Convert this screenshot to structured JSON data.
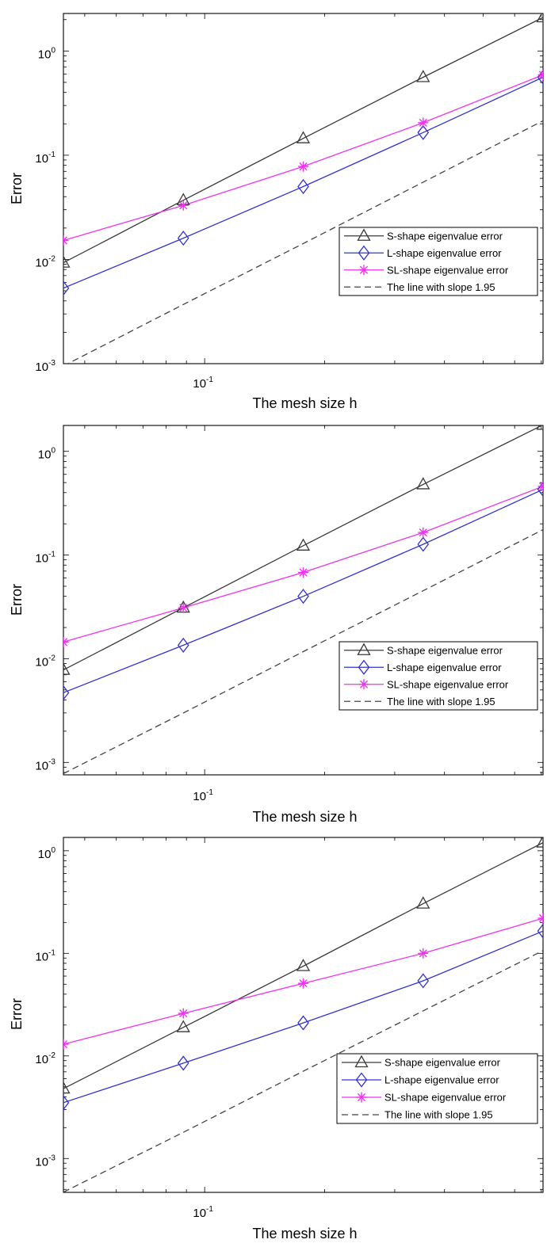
{
  "chart_data": [
    {
      "type": "line",
      "xlabel": "The mesh size h",
      "ylabel": "Error",
      "x_scale": "log",
      "y_scale": "log",
      "x": [
        0.0442,
        0.0884,
        0.1768,
        0.3536,
        0.7071
      ],
      "x_ticks": [
        {
          "value": 0.1,
          "label": "10",
          "sup": "-1"
        }
      ],
      "y_ticks": [
        {
          "value": 0.001,
          "label": "10",
          "sup": "-3"
        },
        {
          "value": 0.01,
          "label": "10",
          "sup": "-2"
        },
        {
          "value": 0.1,
          "label": "10",
          "sup": "-1"
        },
        {
          "value": 1,
          "label": "10",
          "sup": "0"
        }
      ],
      "legend_position": "bottom-right",
      "series": [
        {
          "name": "S-shape eigenvalue error",
          "color": "#3a3a3a",
          "marker": "triangle",
          "dash": "",
          "values": [
            0.0093,
            0.037,
            0.145,
            0.56,
            2.1
          ]
        },
        {
          "name": "L-shape eigenvalue error",
          "color": "#3333cc",
          "marker": "diamond",
          "dash": "",
          "values": [
            0.0053,
            0.016,
            0.05,
            0.165,
            0.56
          ]
        },
        {
          "name": "SL-shape eigenvalue error",
          "color": "#ee33ee",
          "marker": "star",
          "dash": "",
          "values": [
            0.0152,
            0.033,
            0.078,
            0.205,
            0.59
          ]
        },
        {
          "name": "The line with slope 1.95",
          "color": "#444444",
          "marker": "none",
          "dash": "8,5",
          "values": [
            0.00095,
            0.0037,
            0.0142,
            0.0552,
            0.2142
          ]
        }
      ]
    },
    {
      "type": "line",
      "xlabel": "The mesh size h",
      "ylabel": "Error",
      "x_scale": "log",
      "y_scale": "log",
      "x": [
        0.0442,
        0.0884,
        0.1768,
        0.3536,
        0.7071
      ],
      "x_ticks": [
        {
          "value": 0.1,
          "label": "10",
          "sup": "-1"
        }
      ],
      "y_ticks": [
        {
          "value": 0.001,
          "label": "10",
          "sup": "-3"
        },
        {
          "value": 0.01,
          "label": "10",
          "sup": "-2"
        },
        {
          "value": 0.1,
          "label": "10",
          "sup": "-1"
        },
        {
          "value": 1,
          "label": "10",
          "sup": "0"
        }
      ],
      "legend_position": "bottom-right",
      "series": [
        {
          "name": "S-shape eigenvalue error",
          "color": "#3a3a3a",
          "marker": "triangle",
          "dash": "",
          "values": [
            0.0078,
            0.031,
            0.123,
            0.48,
            1.8
          ]
        },
        {
          "name": "L-shape eigenvalue error",
          "color": "#3333cc",
          "marker": "diamond",
          "dash": "",
          "values": [
            0.0047,
            0.0135,
            0.04,
            0.127,
            0.43
          ]
        },
        {
          "name": "SL-shape eigenvalue error",
          "color": "#ee33ee",
          "marker": "star",
          "dash": "",
          "values": [
            0.0145,
            0.031,
            0.068,
            0.165,
            0.46
          ]
        },
        {
          "name": "The line with slope 1.95",
          "color": "#444444",
          "marker": "none",
          "dash": "8,5",
          "values": [
            0.00078,
            0.003,
            0.0117,
            0.0453,
            0.1757
          ]
        }
      ]
    },
    {
      "type": "line",
      "xlabel": "The mesh size h",
      "ylabel": "Error",
      "x_scale": "log",
      "y_scale": "log",
      "x": [
        0.0442,
        0.0884,
        0.1768,
        0.3536,
        0.7071
      ],
      "x_ticks": [
        {
          "value": 0.1,
          "label": "10",
          "sup": "-1"
        }
      ],
      "y_ticks": [
        {
          "value": 0.001,
          "label": "10",
          "sup": "-3"
        },
        {
          "value": 0.01,
          "label": "10",
          "sup": "-2"
        },
        {
          "value": 0.1,
          "label": "10",
          "sup": "-1"
        },
        {
          "value": 1,
          "label": "10",
          "sup": "0"
        }
      ],
      "legend_position": "bottom-right",
      "series": [
        {
          "name": "S-shape eigenvalue error",
          "color": "#3a3a3a",
          "marker": "triangle",
          "dash": "",
          "values": [
            0.0048,
            0.019,
            0.075,
            0.305,
            1.2
          ]
        },
        {
          "name": "L-shape eigenvalue error",
          "color": "#3333cc",
          "marker": "diamond",
          "dash": "",
          "values": [
            0.0035,
            0.0085,
            0.021,
            0.054,
            0.165
          ]
        },
        {
          "name": "SL-shape eigenvalue error",
          "color": "#ee33ee",
          "marker": "star",
          "dash": "",
          "values": [
            0.013,
            0.026,
            0.051,
            0.1,
            0.22
          ]
        },
        {
          "name": "The line with slope 1.95",
          "color": "#444444",
          "marker": "none",
          "dash": "8,5",
          "values": [
            0.00047,
            0.0018,
            0.0071,
            0.0275,
            0.1064
          ]
        }
      ]
    }
  ]
}
